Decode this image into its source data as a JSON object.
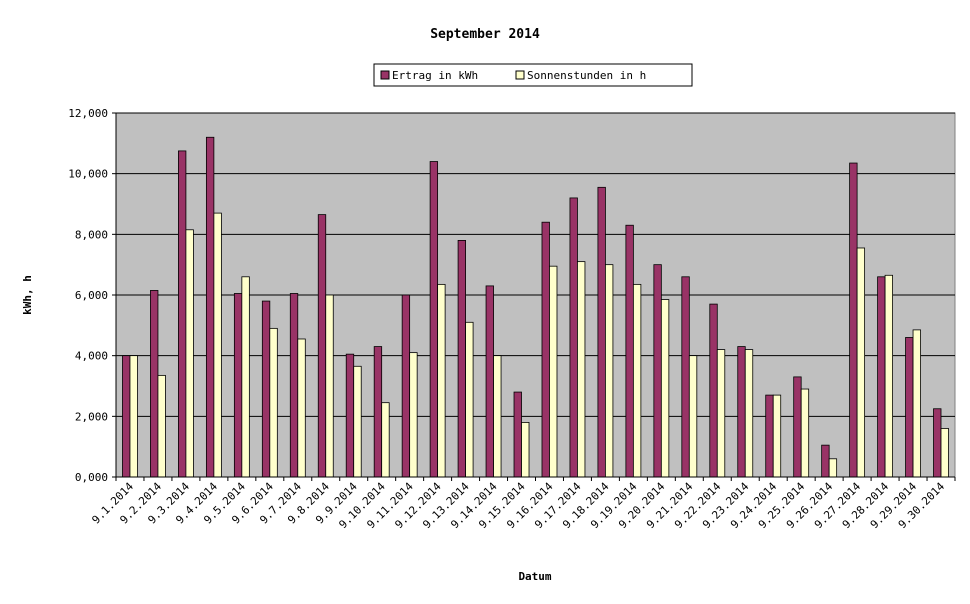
{
  "chart_data": {
    "type": "bar",
    "title": "September 2014",
    "xlabel": "Datum",
    "ylabel": "kWh, h",
    "ylim": [
      0,
      12
    ],
    "yticks": [
      0,
      2,
      4,
      6,
      8,
      10,
      12
    ],
    "ytick_labels": [
      "0,000",
      "2,000",
      "4,000",
      "6,000",
      "8,000",
      "10,000",
      "12,000"
    ],
    "grid": true,
    "legend_position": "top-center",
    "categories": [
      "9.1.2014",
      "9.2.2014",
      "9.3.2014",
      "9.4.2014",
      "9.5.2014",
      "9.6.2014",
      "9.7.2014",
      "9.8.2014",
      "9.9.2014",
      "9.10.2014",
      "9.11.2014",
      "9.12.2014",
      "9.13.2014",
      "9.14.2014",
      "9.15.2014",
      "9.16.2014",
      "9.17.2014",
      "9.18.2014",
      "9.19.2014",
      "9.20.2014",
      "9.21.2014",
      "9.22.2014",
      "9.23.2014",
      "9.24.2014",
      "9.25.2014",
      "9.26.2014",
      "9.27.2014",
      "9.28.2014",
      "9.29.2014",
      "9.30.2014"
    ],
    "series": [
      {
        "name": "Ertrag in kWh",
        "color": "#993366",
        "values": [
          4.0,
          6.15,
          10.75,
          11.2,
          6.05,
          5.8,
          6.05,
          8.65,
          4.05,
          4.3,
          6.0,
          10.4,
          7.8,
          6.3,
          2.8,
          8.4,
          9.2,
          9.55,
          8.3,
          7.0,
          6.6,
          5.7,
          4.3,
          2.7,
          3.3,
          1.05,
          10.35,
          6.6,
          4.6,
          2.25
        ]
      },
      {
        "name": "Sonnenstunden in h",
        "color": "#FFFFCC",
        "values": [
          4.0,
          3.35,
          8.15,
          8.7,
          6.6,
          4.9,
          4.55,
          6.0,
          3.65,
          2.45,
          4.1,
          6.35,
          5.1,
          4.0,
          1.8,
          6.95,
          7.1,
          7.0,
          6.35,
          5.85,
          4.0,
          4.2,
          4.2,
          2.7,
          2.9,
          0.6,
          7.55,
          6.65,
          4.85,
          1.6
        ]
      }
    ],
    "plot_background": "#C0C0C0"
  }
}
